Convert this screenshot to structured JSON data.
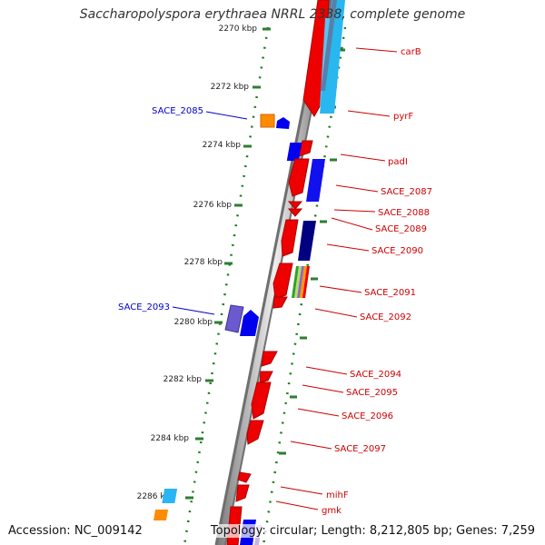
{
  "title": "Saccharopolyspora erythraea NRRL 2338, complete genome",
  "accession": "Accession: NC_009142",
  "topology": "Topology: circular; Length: 8,212,805 bp; Genes: 7,259",
  "ticks": [
    {
      "label": "2270 kbp"
    },
    {
      "label": "2272 kbp"
    },
    {
      "label": "2274 kbp"
    },
    {
      "label": "2276 kbp"
    },
    {
      "label": "2278 kbp"
    },
    {
      "label": "2280 kbp"
    },
    {
      "label": "2282 kbp"
    },
    {
      "label": "2284 kbp"
    },
    {
      "label": "2286 kbp"
    }
  ],
  "gene_labels_right": [
    "carB",
    "pyrF",
    "padI",
    "SACE_2087",
    "SACE_2088",
    "SACE_2089",
    "SACE_2090",
    "SACE_2091",
    "SACE_2092",
    "SACE_2094",
    "SACE_2095",
    "SACE_2096",
    "SACE_2097",
    "mihF",
    "gmk"
  ],
  "gene_labels_left": [
    "SACE_2085",
    "SACE_2093"
  ],
  "colors": {
    "red_label": "#cc0000",
    "blue_label": "#0000cc",
    "tick": "#2e7d32"
  }
}
